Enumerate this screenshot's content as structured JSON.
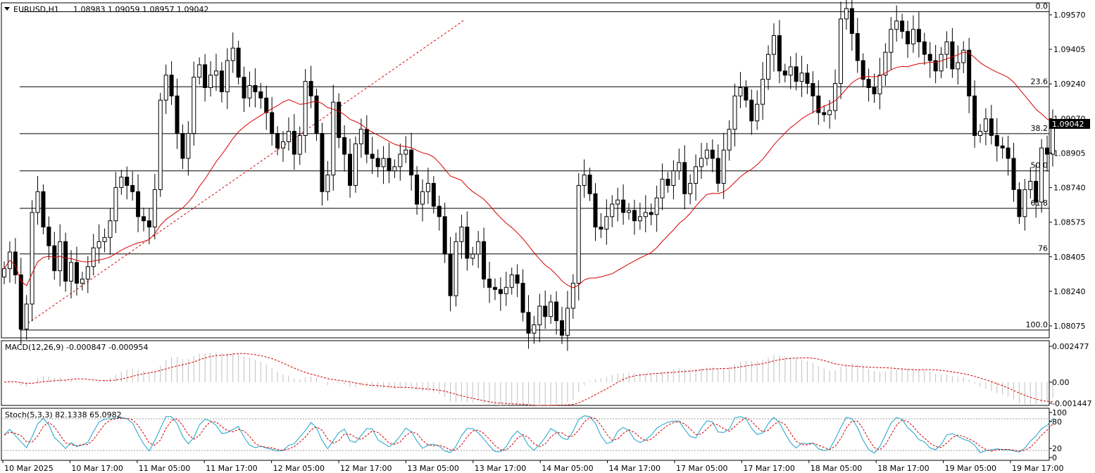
{
  "header": {
    "symbol": "EURUSD,H1",
    "ohlc": "1.08983 1.09059 1.08957 1.09042"
  },
  "current_price": "1.09042",
  "price_axis_labels": [
    "1.09570",
    "1.09405",
    "1.09240",
    "1.09070",
    "1.08905",
    "1.08740",
    "1.08575",
    "1.08405",
    "1.08240",
    "1.08075"
  ],
  "time_axis_labels": [
    "10 Mar 2025",
    "10 Mar 17:00",
    "11 Mar 05:00",
    "11 Mar 17:00",
    "12 Mar 05:00",
    "12 Mar 17:00",
    "13 Mar 05:00",
    "13 Mar 17:00",
    "14 Mar 05:00",
    "14 Mar 17:00",
    "17 Mar 05:00",
    "17 Mar 17:00",
    "18 Mar 05:00",
    "18 Mar 17:00",
    "19 Mar 05:00",
    "19 Mar 17:00"
  ],
  "fibonacci": {
    "levels": [
      {
        "label": "0.0",
        "price": 1.09585
      },
      {
        "label": "23.6",
        "price": 1.09224
      },
      {
        "label": "38.2",
        "price": 1.08999
      },
      {
        "label": "50.0",
        "price": 1.0882
      },
      {
        "label": "61.8",
        "price": 1.0864
      },
      {
        "label": "76",
        "price": 1.08421
      },
      {
        "label": "100.0",
        "price": 1.08055
      }
    ]
  },
  "macd": {
    "label": "MACD(12,26,9) -0.000847 -0.000954",
    "axis_labels": [
      "0.002477",
      "0.00",
      "-0.001447"
    ]
  },
  "stoch": {
    "label": "Stoch(5,3,3) 82.1338 65.0982",
    "axis_labels": [
      "100",
      "80",
      "20",
      "0"
    ]
  },
  "colors": {
    "bull_body": "#ffffff",
    "bear_body": "#000000",
    "ma_line": "#d40000",
    "macd_hist": "#c0c0c0",
    "macd_signal": "#d40000",
    "stoch_main": "#1aa3c8",
    "stoch_signal": "#d40000"
  },
  "chart_data": {
    "type": "candlestick",
    "symbol": "EURUSD",
    "timeframe": "H1",
    "ylim": [
      1.08,
      1.0965
    ],
    "candles_close": [
      1.0835,
      1.0843,
      1.0832,
      1.0806,
      1.0818,
      1.0862,
      1.0872,
      1.0855,
      1.0846,
      1.0834,
      1.0848,
      1.0829,
      1.0838,
      1.0828,
      1.083,
      1.0836,
      1.0845,
      1.0848,
      1.085,
      1.0858,
      1.0874,
      1.0879,
      1.0875,
      1.0872,
      1.086,
      1.0858,
      1.0855,
      1.0873,
      1.0916,
      1.0928,
      1.0918,
      1.09,
      1.0888,
      1.09,
      1.0927,
      1.0933,
      1.0922,
      1.0928,
      1.093,
      1.092,
      1.0935,
      1.0941,
      1.0927,
      1.0917,
      1.0923,
      1.092,
      1.0917,
      1.091,
      1.09,
      1.0893,
      1.0896,
      1.0901,
      1.089,
      1.0899,
      1.0925,
      1.0918,
      1.09,
      1.0872,
      1.088,
      1.0915,
      1.0898,
      1.089,
      1.0875,
      1.0895,
      1.0902,
      1.089,
      1.0888,
      1.0884,
      1.0888,
      1.0882,
      1.0884,
      1.089,
      1.0892,
      1.088,
      1.0866,
      1.0872,
      1.0876,
      1.0865,
      1.086,
      1.0842,
      1.0822,
      1.0848,
      1.0855,
      1.084,
      1.0842,
      1.0848,
      1.083,
      1.0826,
      1.0825,
      1.0823,
      1.0826,
      1.0832,
      1.0828,
      1.0814,
      1.0804,
      1.0808,
      1.0817,
      1.0812,
      1.0819,
      1.081,
      1.0803,
      1.0816,
      1.0828,
      1.0875,
      1.088,
      1.0871,
      1.0855,
      1.0854,
      1.086,
      1.0866,
      1.0868,
      1.0862,
      1.0863,
      1.0858,
      1.086,
      1.0862,
      1.0861,
      1.0869,
      1.0878,
      1.0875,
      1.0882,
      1.0886,
      1.0871,
      1.0876,
      1.0884,
      1.0888,
      1.0892,
      1.0888,
      1.0876,
      1.0892,
      1.0902,
      1.0918,
      1.0922,
      1.0916,
      1.0906,
      1.0914,
      1.0926,
      1.0938,
      1.0947,
      1.093,
      1.0928,
      1.0932,
      1.0925,
      1.0929,
      1.0924,
      1.0918,
      1.091,
      1.0909,
      1.0911,
      1.0924,
      1.0955,
      1.096,
      1.0948,
      1.0935,
      1.0926,
      1.0922,
      1.0919,
      1.0928,
      1.0939,
      1.095,
      1.0954,
      1.0949,
      1.0943,
      1.095,
      1.0944,
      1.0938,
      1.0935,
      1.093,
      1.0938,
      1.0944,
      1.0931,
      1.0934,
      1.094,
      1.0918,
      1.0899,
      1.0901,
      1.0907,
      1.0899,
      1.0894,
      1.0893,
      1.0888,
      1.0873,
      1.086,
      1.0873,
      1.0877,
      1.0867,
      1.0893,
      1.089,
      1.0904
    ],
    "moving_average_color": "red",
    "fib_high": 1.09585,
    "fib_low": 1.08055
  }
}
